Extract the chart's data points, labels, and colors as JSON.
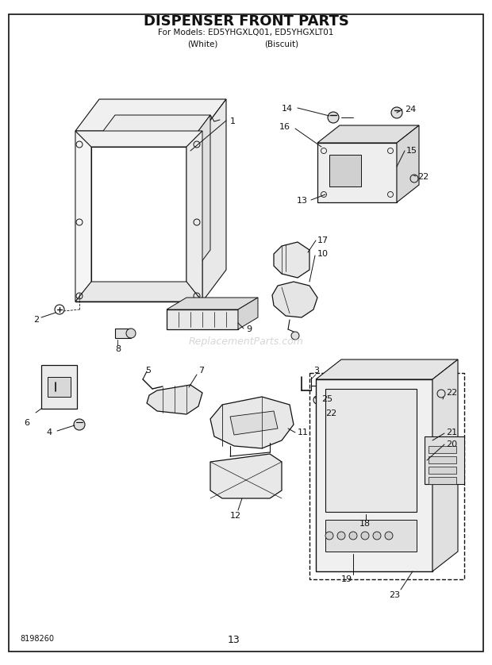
{
  "title": "DISPENSER FRONT PARTS",
  "subtitle_line1": "For Models: ED5YHGXLQ01, ED5YHGXLT01",
  "subtitle_line2_a": "(White)",
  "subtitle_line2_b": "(Biscuit)",
  "page_number": "13",
  "part_number": "8198260",
  "bg": "#ffffff",
  "lc": "#111111",
  "tc": "#111111",
  "watermark": "ReplacementParts.com",
  "border": [
    0.018,
    0.022,
    0.964,
    0.958
  ]
}
